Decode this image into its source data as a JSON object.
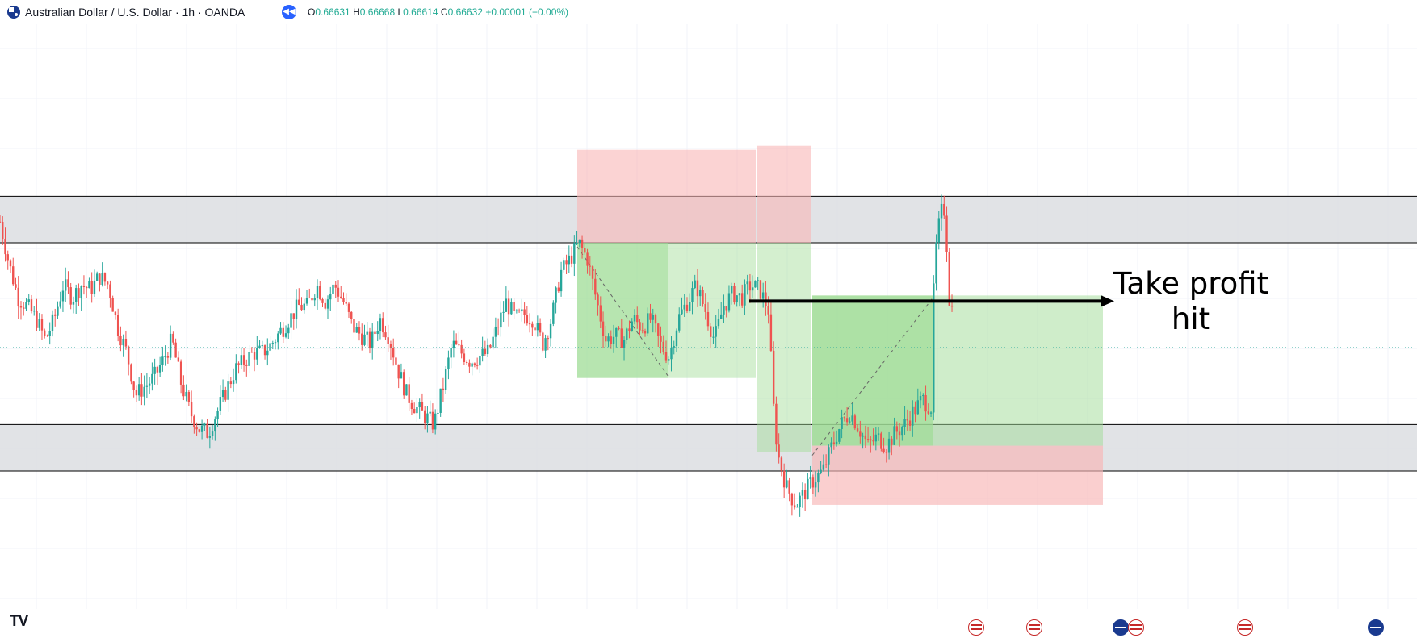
{
  "header": {
    "symbol_title": "Australian Dollar / U.S. Dollar · 1h · OANDA",
    "ohlc_labels": [
      "O",
      "H",
      "L",
      "C"
    ],
    "ohlc_values": [
      "0.66631",
      "0.66668",
      "0.66614",
      "0.66632"
    ],
    "change": "+0.00001 (+0.00%)",
    "replay_icon": "rewind-icon"
  },
  "annotation": {
    "line1": "Take profit",
    "line2": "hit"
  },
  "logo_text": "TV",
  "colors": {
    "bull": "#26a69a",
    "bear": "#ef5350",
    "zone_fill": "#dcdee2",
    "profit_fill": "#9fdc95",
    "loss_fill": "#f8b5b5",
    "arrow": "#000000"
  },
  "event_icons": [
    "us-flag-icon",
    "us-flag-icon",
    "au-flag-icon",
    "us-flag-icon",
    "us-flag-icon",
    "au-flag-icon"
  ],
  "chart_data": {
    "type": "candlestick",
    "symbol": "AUDUSD",
    "timeframe": "1h",
    "last_close": 0.66632,
    "price_range": [
      0.6595,
      0.6725
    ],
    "grid": true,
    "zones": [
      {
        "name": "resistance",
        "from": 0.6688,
        "to": 0.6699
      },
      {
        "name": "support",
        "from": 0.6634,
        "to": 0.6645
      }
    ],
    "trades": [
      {
        "direction": "short",
        "entry": 0.6688,
        "stop": 0.671,
        "target": 0.6656
      },
      {
        "direction": "long",
        "entry": 0.664,
        "stop": 0.6626,
        "target": 0.6674
      }
    ],
    "path": [
      [
        0,
        0.6693
      ],
      [
        10,
        0.6683
      ],
      [
        20,
        0.6675
      ],
      [
        30,
        0.6673
      ],
      [
        40,
        0.667
      ],
      [
        50,
        0.6665
      ],
      [
        60,
        0.667
      ],
      [
        70,
        0.6678
      ],
      [
        80,
        0.6675
      ],
      [
        90,
        0.6678
      ],
      [
        100,
        0.6677
      ],
      [
        110,
        0.668
      ],
      [
        120,
        0.6678
      ],
      [
        130,
        0.6668
      ],
      [
        140,
        0.6662
      ],
      [
        150,
        0.6652
      ],
      [
        160,
        0.6654
      ],
      [
        170,
        0.6656
      ],
      [
        180,
        0.666
      ],
      [
        190,
        0.6665
      ],
      [
        200,
        0.6655
      ],
      [
        210,
        0.6648
      ],
      [
        220,
        0.6644
      ],
      [
        230,
        0.6643
      ],
      [
        240,
        0.6648
      ],
      [
        250,
        0.6653
      ],
      [
        260,
        0.6658
      ],
      [
        270,
        0.666
      ],
      [
        280,
        0.6662
      ],
      [
        290,
        0.6662
      ],
      [
        300,
        0.6664
      ],
      [
        310,
        0.6667
      ],
      [
        320,
        0.667
      ],
      [
        330,
        0.6673
      ],
      [
        340,
        0.6673
      ],
      [
        350,
        0.6678
      ],
      [
        360,
        0.6674
      ],
      [
        370,
        0.6678
      ],
      [
        380,
        0.6674
      ],
      [
        390,
        0.6668
      ],
      [
        400,
        0.6666
      ],
      [
        410,
        0.6664
      ],
      [
        420,
        0.667
      ],
      [
        430,
        0.6666
      ],
      [
        440,
        0.6658
      ],
      [
        450,
        0.6652
      ],
      [
        460,
        0.6649
      ],
      [
        470,
        0.6647
      ],
      [
        480,
        0.6645
      ],
      [
        490,
        0.6654
      ],
      [
        500,
        0.6664
      ],
      [
        510,
        0.6662
      ],
      [
        520,
        0.666
      ],
      [
        530,
        0.6661
      ],
      [
        540,
        0.6662
      ],
      [
        550,
        0.6668
      ],
      [
        560,
        0.6674
      ],
      [
        570,
        0.667
      ],
      [
        580,
        0.6671
      ],
      [
        590,
        0.667
      ],
      [
        600,
        0.6664
      ],
      [
        610,
        0.667
      ],
      [
        620,
        0.6681
      ],
      [
        630,
        0.6684
      ],
      [
        640,
        0.6688
      ],
      [
        650,
        0.6684
      ],
      [
        660,
        0.6674
      ],
      [
        670,
        0.6665
      ],
      [
        680,
        0.6666
      ],
      [
        690,
        0.6665
      ],
      [
        700,
        0.667
      ],
      [
        710,
        0.6668
      ],
      [
        720,
        0.667
      ],
      [
        730,
        0.6664
      ],
      [
        740,
        0.6661
      ],
      [
        750,
        0.667
      ],
      [
        760,
        0.6674
      ],
      [
        770,
        0.6678
      ],
      [
        780,
        0.6672
      ],
      [
        790,
        0.6665
      ],
      [
        800,
        0.6673
      ],
      [
        810,
        0.6676
      ],
      [
        820,
        0.6675
      ],
      [
        830,
        0.6678
      ],
      [
        840,
        0.6677
      ],
      [
        850,
        0.6672
      ],
      [
        855,
        0.665
      ],
      [
        860,
        0.6638
      ],
      [
        870,
        0.663
      ],
      [
        880,
        0.6626
      ],
      [
        890,
        0.6629
      ],
      [
        900,
        0.6632
      ],
      [
        910,
        0.6634
      ],
      [
        920,
        0.664
      ],
      [
        930,
        0.6645
      ],
      [
        940,
        0.6648
      ],
      [
        950,
        0.6644
      ],
      [
        960,
        0.664
      ],
      [
        970,
        0.6642
      ],
      [
        980,
        0.664
      ],
      [
        990,
        0.6643
      ],
      [
        1000,
        0.6645
      ],
      [
        1010,
        0.6648
      ],
      [
        1020,
        0.6651
      ],
      [
        1030,
        0.6649
      ],
      [
        1033,
        0.6683
      ],
      [
        1040,
        0.6695
      ],
      [
        1045,
        0.6696
      ],
      [
        1050,
        0.6674
      ],
      [
        1055,
        0.6671
      ]
    ]
  }
}
